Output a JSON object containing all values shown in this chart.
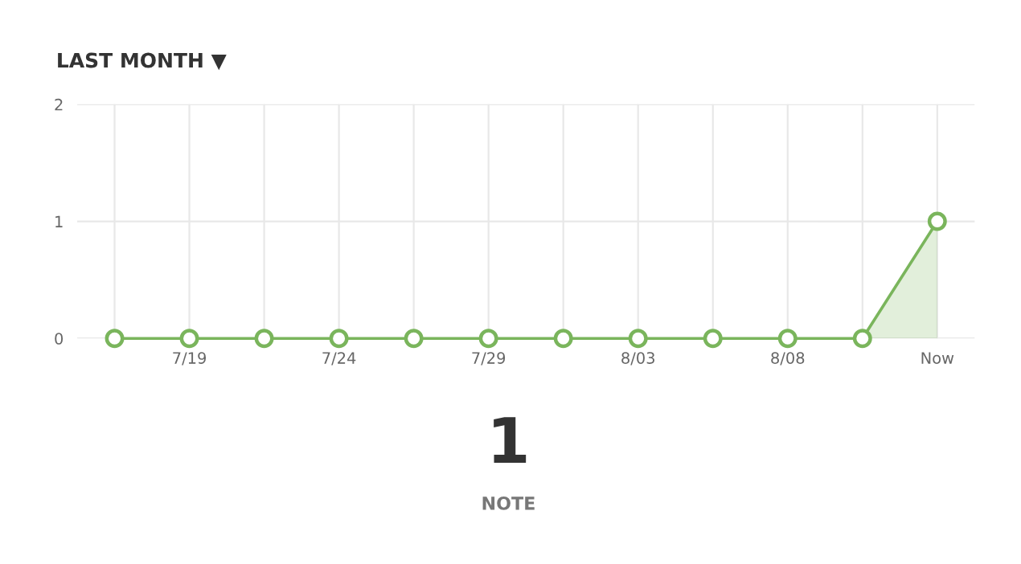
{
  "chart_data": {
    "type": "area",
    "title": "LAST MONTH ▼",
    "categories": [
      null,
      "7/19",
      null,
      "7/24",
      null,
      "7/29",
      null,
      "8/03",
      null,
      "8/08",
      null,
      "Now"
    ],
    "series": [
      {
        "color": "#7ab55c",
        "values": [
          0,
          0,
          0,
          0,
          0,
          0,
          0,
          0,
          0,
          0,
          0,
          1
        ]
      }
    ],
    "ylim": [
      0,
      2
    ],
    "yticks": [
      0,
      1,
      2
    ],
    "grid": true,
    "marker": "circle",
    "line_style": "solid",
    "annotations": [
      "1",
      "NOTE"
    ]
  }
}
